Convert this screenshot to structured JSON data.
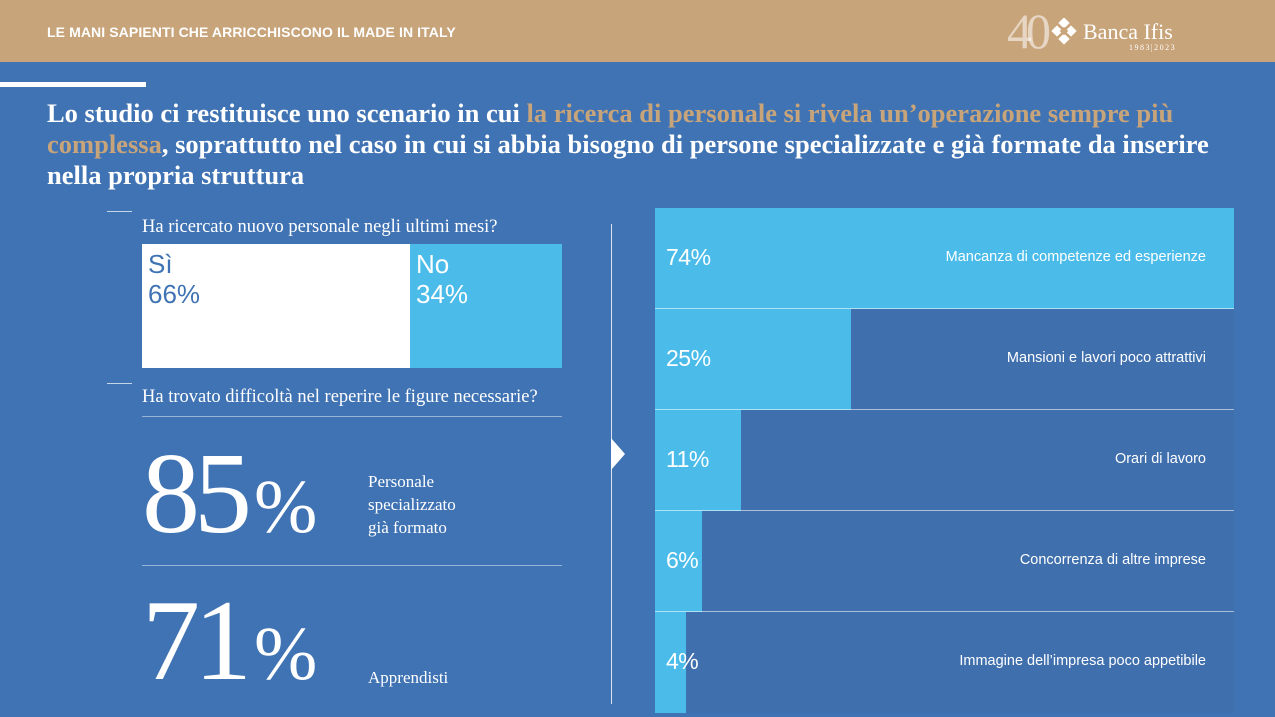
{
  "header": {
    "title": "LE MANI SAPIENTI CHE ARRICCHISCONO IL MADE IN ITALY",
    "logo_anniversary": "40",
    "logo_name": "Banca Ifis",
    "logo_years": "1983|2023"
  },
  "headline": {
    "part1": "Lo studio ci restituisce uno scenario in cui ",
    "highlight": "la ricerca di personale si rivela un’operazione sempre più complessa",
    "part2": ", soprattutto nel caso in cui si abbia bisogno di persone specializzate e già formate da inserire nella propria struttura"
  },
  "question1": {
    "text": "Ha ricercato nuovo personale negli ultimi mesi?",
    "yes_label": "Sì",
    "yes_value": "66%",
    "yes_fraction": 0.66,
    "no_label": "No",
    "no_value": "34%",
    "no_fraction": 0.34
  },
  "question2": {
    "text": "Ha trovato difficoltà nel reperire le figure necessarie?",
    "stats": [
      {
        "number": "85",
        "unit": "%",
        "desc_line1": "Personale",
        "desc_line2": "specializzato",
        "desc_line3": "già formato"
      },
      {
        "number": "71",
        "unit": "%",
        "desc_line1": "Apprendisti"
      }
    ]
  },
  "colors": {
    "background": "#4073b3",
    "gold": "#c8a47a",
    "bar": "#4bbcea",
    "white": "#ffffff"
  },
  "chart_data": {
    "type": "bar",
    "orientation": "horizontal",
    "categories": [
      "Mancanza di competenze ed esperienze",
      "Mansioni e lavori poco attrattivi",
      "Orari di lavoro",
      "Concorrenza di altre imprese",
      "Immagine dell’impresa poco appetibile"
    ],
    "values": [
      74,
      25,
      11,
      6,
      4
    ],
    "value_labels": [
      "74%",
      "25%",
      "11%",
      "6%",
      "4%"
    ],
    "xlim": [
      0,
      74
    ]
  }
}
